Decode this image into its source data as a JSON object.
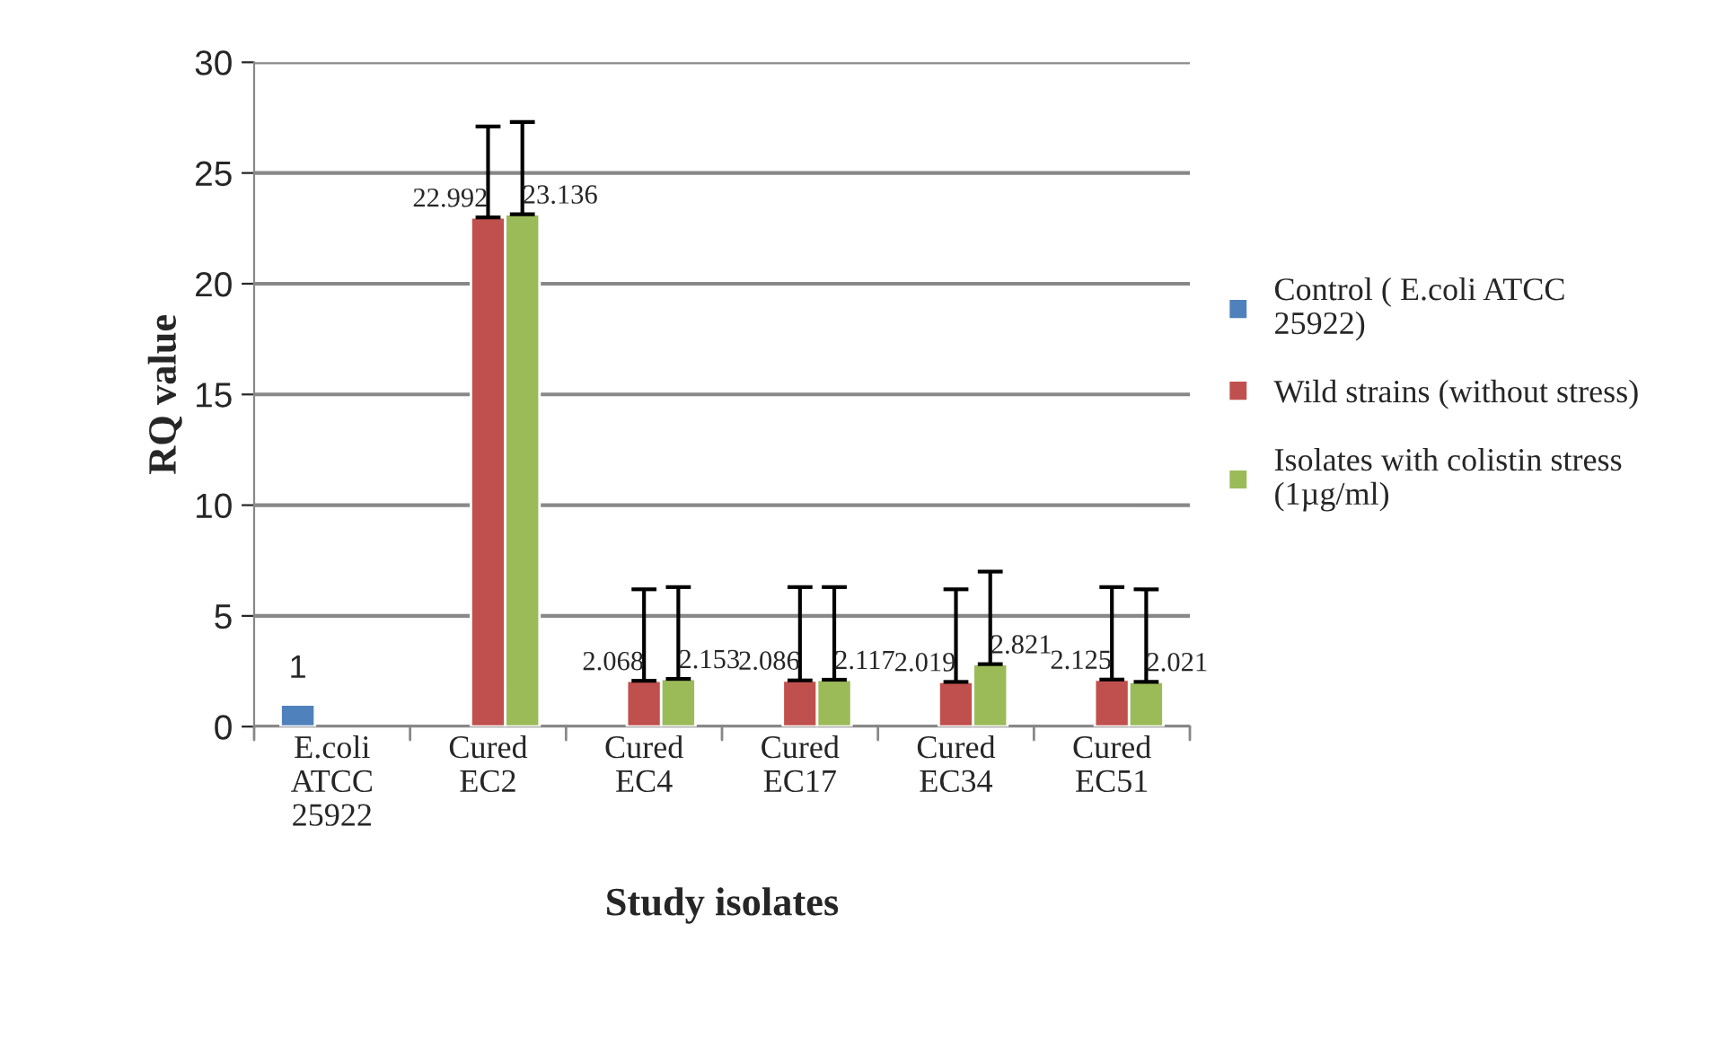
{
  "chart_data": {
    "type": "bar",
    "xlabel": "Study isolates",
    "ylabel": "RQ value",
    "categories": [
      "E.coli\nATCC\n25922",
      "Cured\nEC2",
      "Cured\nEC4",
      "Cured\nEC17",
      "Cured\nEC34",
      "Cured\nEC51"
    ],
    "series": [
      {
        "name": "Control ( E.coli ATCC 25922)",
        "color": "#4f81bd",
        "values": [
          1,
          null,
          null,
          null,
          null,
          null
        ]
      },
      {
        "name": "Wild strains (without stress)",
        "color": "#c0504d",
        "values": [
          null,
          22.992,
          2.068,
          2.086,
          2.019,
          2.125
        ],
        "errors": [
          null,
          [
            22.992,
            27.1
          ],
          [
            2.068,
            6.2
          ],
          [
            2.086,
            6.3
          ],
          [
            2.019,
            6.2
          ],
          [
            2.125,
            6.3
          ]
        ]
      },
      {
        "name": "Isolates with colistin stress (1µg/ml)",
        "color": "#9bbb59",
        "values": [
          null,
          23.136,
          2.153,
          2.117,
          2.821,
          2.021
        ],
        "errors": [
          null,
          [
            23.136,
            27.3
          ],
          [
            2.153,
            6.3
          ],
          [
            2.117,
            6.3
          ],
          [
            2.821,
            7.0
          ],
          [
            2.021,
            6.2
          ]
        ]
      }
    ],
    "ylim": [
      0,
      30
    ],
    "yticks": [
      0,
      5,
      10,
      15,
      20,
      25,
      30
    ],
    "grid": "y",
    "legend": "right",
    "data_labels": true
  }
}
